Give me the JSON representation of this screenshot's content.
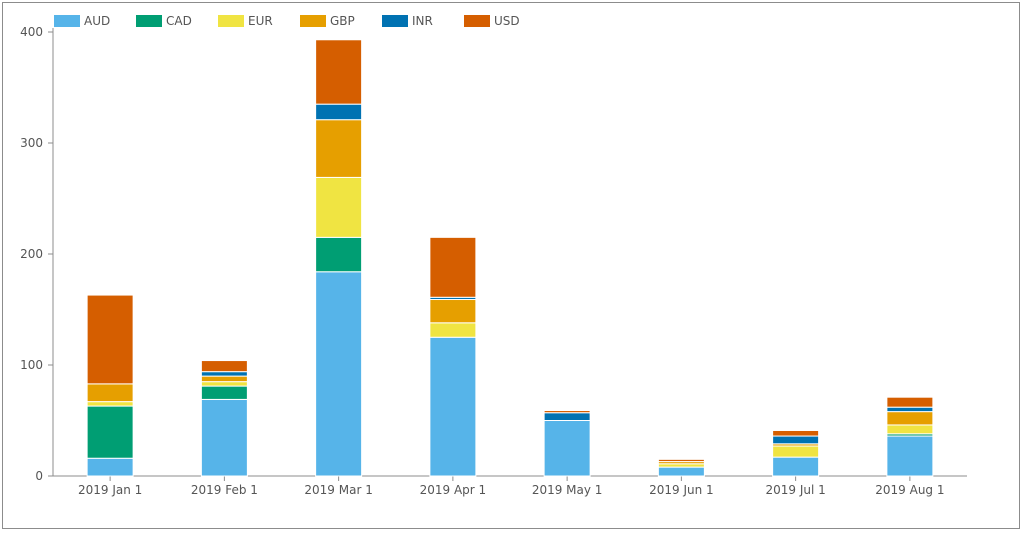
{
  "chart_data": {
    "type": "bar",
    "stacked": true,
    "title": "",
    "xlabel": "",
    "ylabel": "",
    "ylim": [
      0,
      400
    ],
    "yticks": [
      0,
      100,
      200,
      300,
      400
    ],
    "grid": false,
    "legend_position": "top-left",
    "categories": [
      "2019 Jan 1",
      "2019 Feb 1",
      "2019 Mar 1",
      "2019 Apr 1",
      "2019 May 1",
      "2019 Jun 1",
      "2019 Jul 1",
      "2019 Aug 1"
    ],
    "series": [
      {
        "name": "AUD",
        "color": "#56b4e9",
        "values": [
          16,
          69,
          184,
          125,
          50,
          8,
          17,
          36
        ]
      },
      {
        "name": "CAD",
        "color": "#009e73",
        "values": [
          47,
          12,
          31,
          0,
          0,
          0,
          0,
          2
        ]
      },
      {
        "name": "EUR",
        "color": "#f0e442",
        "values": [
          4,
          4,
          54,
          13,
          0,
          3,
          10,
          8
        ]
      },
      {
        "name": "GBP",
        "color": "#e69f00",
        "values": [
          16,
          5,
          52,
          21,
          0,
          2,
          2,
          12
        ]
      },
      {
        "name": "INR",
        "color": "#0072b2",
        "values": [
          0,
          4,
          14,
          2,
          7,
          0,
          7,
          4
        ]
      },
      {
        "name": "USD",
        "color": "#d55e00",
        "values": [
          80,
          10,
          58,
          54,
          2,
          2,
          5,
          9
        ]
      }
    ]
  }
}
